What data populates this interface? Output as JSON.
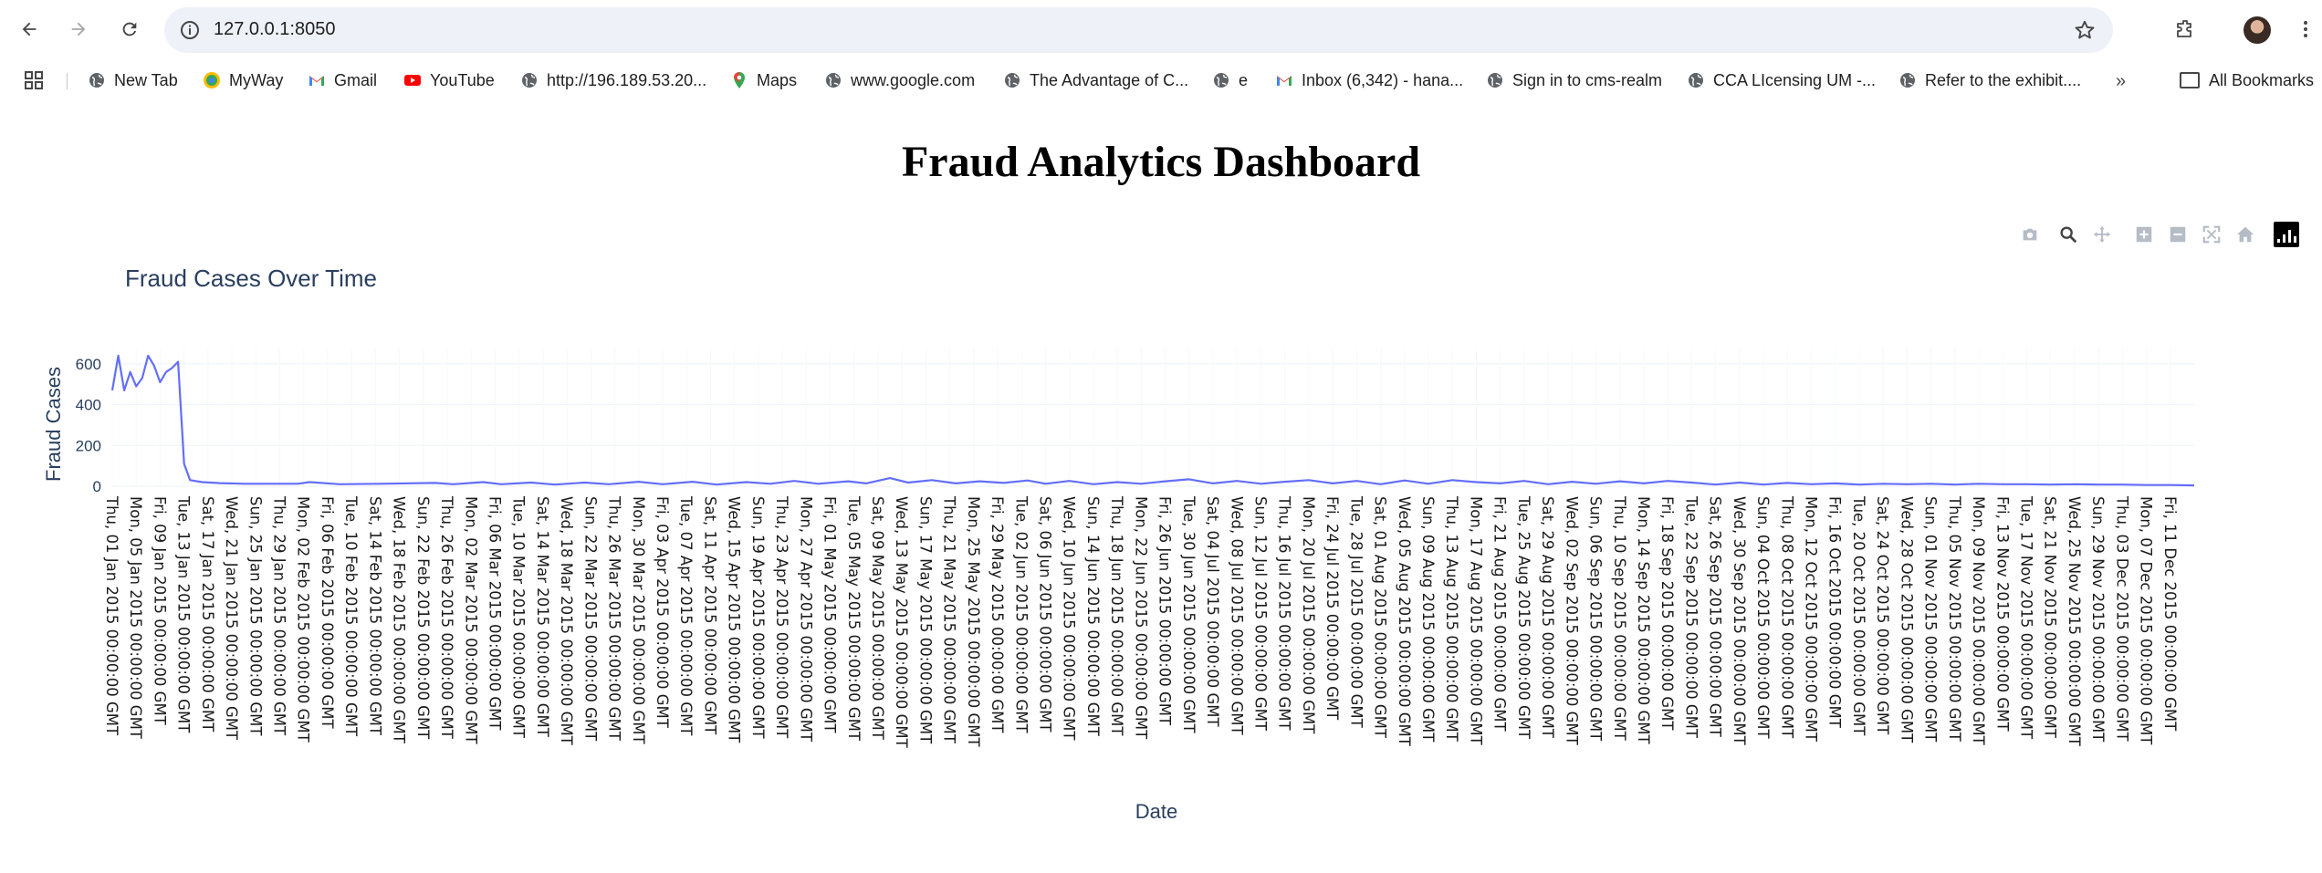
{
  "browser": {
    "url": "127.0.0.1:8050",
    "bookmarks": [
      {
        "label": "New Tab",
        "icon": "globe-icon"
      },
      {
        "label": "MyWay",
        "icon": "myway-icon"
      },
      {
        "label": "Gmail",
        "icon": "gmail-icon"
      },
      {
        "label": "YouTube",
        "icon": "youtube-icon"
      },
      {
        "label": "http://196.189.53.20...",
        "icon": "globe-icon"
      },
      {
        "label": "Maps",
        "icon": "maps-icon"
      },
      {
        "label": "www.google.com",
        "icon": "globe-icon"
      },
      {
        "label": "The Advantage of C...",
        "icon": "globe-icon"
      },
      {
        "label": "e",
        "icon": "globe-icon"
      },
      {
        "label": "Inbox (6,342) - hana...",
        "icon": "gmail-icon"
      },
      {
        "label": "Sign in to cms-realm",
        "icon": "globe-icon"
      },
      {
        "label": "CCA LIcensing UM -...",
        "icon": "globe-icon"
      },
      {
        "label": "Refer to the exhibit....",
        "icon": "globe-icon"
      }
    ],
    "all_bookmarks_label": "All Bookmarks",
    "more_label": "»"
  },
  "page": {
    "title": "Fraud Analytics Dashboard"
  },
  "chart_data": {
    "type": "line",
    "title": "Fraud Cases Over Time",
    "xlabel": "Date",
    "ylabel": "Fraud Cases",
    "color": "#636efa",
    "ylim": [
      0,
      680
    ],
    "y_ticks": [
      0,
      200,
      400,
      600
    ],
    "x_start": "2015-01-01",
    "x_end": "2015-12-15",
    "x_tick_every_days": 4,
    "grid": true,
    "series": [
      {
        "points": [
          [
            "2015-01-01",
            470
          ],
          [
            "2015-01-02",
            640
          ],
          [
            "2015-01-03",
            470
          ],
          [
            "2015-01-04",
            560
          ],
          [
            "2015-01-05",
            490
          ],
          [
            "2015-01-06",
            530
          ],
          [
            "2015-01-07",
            640
          ],
          [
            "2015-01-08",
            590
          ],
          [
            "2015-01-09",
            510
          ],
          [
            "2015-01-10",
            560
          ],
          [
            "2015-01-11",
            580
          ],
          [
            "2015-01-12",
            610
          ],
          [
            "2015-01-13",
            110
          ],
          [
            "2015-01-14",
            30
          ],
          [
            "2015-01-16",
            20
          ],
          [
            "2015-01-19",
            15
          ],
          [
            "2015-01-23",
            12
          ],
          [
            "2015-02-01",
            12
          ],
          [
            "2015-02-03",
            20
          ],
          [
            "2015-02-08",
            10
          ],
          [
            "2015-02-15",
            12
          ],
          [
            "2015-02-24",
            16
          ],
          [
            "2015-02-27",
            10
          ],
          [
            "2015-03-01",
            14
          ],
          [
            "2015-03-04",
            20
          ],
          [
            "2015-03-07",
            10
          ],
          [
            "2015-03-12",
            18
          ],
          [
            "2015-03-16",
            8
          ],
          [
            "2015-03-21",
            18
          ],
          [
            "2015-03-25",
            10
          ],
          [
            "2015-03-30",
            22
          ],
          [
            "2015-04-03",
            10
          ],
          [
            "2015-04-08",
            22
          ],
          [
            "2015-04-12",
            8
          ],
          [
            "2015-04-17",
            20
          ],
          [
            "2015-04-21",
            12
          ],
          [
            "2015-04-25",
            26
          ],
          [
            "2015-04-29",
            12
          ],
          [
            "2015-05-04",
            24
          ],
          [
            "2015-05-07",
            14
          ],
          [
            "2015-05-11",
            40
          ],
          [
            "2015-05-14",
            18
          ],
          [
            "2015-05-18",
            30
          ],
          [
            "2015-05-22",
            14
          ],
          [
            "2015-05-26",
            24
          ],
          [
            "2015-05-30",
            16
          ],
          [
            "2015-06-03",
            28
          ],
          [
            "2015-06-06",
            12
          ],
          [
            "2015-06-10",
            26
          ],
          [
            "2015-06-14",
            10
          ],
          [
            "2015-06-18",
            20
          ],
          [
            "2015-06-22",
            12
          ],
          [
            "2015-06-26",
            24
          ],
          [
            "2015-06-30",
            34
          ],
          [
            "2015-07-04",
            14
          ],
          [
            "2015-07-08",
            26
          ],
          [
            "2015-07-12",
            12
          ],
          [
            "2015-07-16",
            22
          ],
          [
            "2015-07-20",
            30
          ],
          [
            "2015-07-24",
            14
          ],
          [
            "2015-07-28",
            26
          ],
          [
            "2015-08-01",
            10
          ],
          [
            "2015-08-05",
            28
          ],
          [
            "2015-08-09",
            12
          ],
          [
            "2015-08-13",
            30
          ],
          [
            "2015-08-17",
            20
          ],
          [
            "2015-08-21",
            14
          ],
          [
            "2015-08-25",
            26
          ],
          [
            "2015-08-29",
            10
          ],
          [
            "2015-09-02",
            22
          ],
          [
            "2015-09-06",
            12
          ],
          [
            "2015-09-10",
            24
          ],
          [
            "2015-09-14",
            14
          ],
          [
            "2015-09-18",
            26
          ],
          [
            "2015-09-22",
            18
          ],
          [
            "2015-09-26",
            8
          ],
          [
            "2015-09-30",
            18
          ],
          [
            "2015-10-04",
            8
          ],
          [
            "2015-10-08",
            16
          ],
          [
            "2015-10-12",
            10
          ],
          [
            "2015-10-16",
            14
          ],
          [
            "2015-10-20",
            8
          ],
          [
            "2015-10-24",
            12
          ],
          [
            "2015-10-28",
            10
          ],
          [
            "2015-11-01",
            12
          ],
          [
            "2015-11-05",
            8
          ],
          [
            "2015-11-09",
            12
          ],
          [
            "2015-11-13",
            10
          ],
          [
            "2015-11-17",
            10
          ],
          [
            "2015-11-21",
            8
          ],
          [
            "2015-11-25",
            10
          ],
          [
            "2015-11-29",
            8
          ],
          [
            "2015-12-03",
            8
          ],
          [
            "2015-12-07",
            6
          ],
          [
            "2015-12-11",
            6
          ],
          [
            "2015-12-15",
            4
          ]
        ]
      }
    ]
  }
}
